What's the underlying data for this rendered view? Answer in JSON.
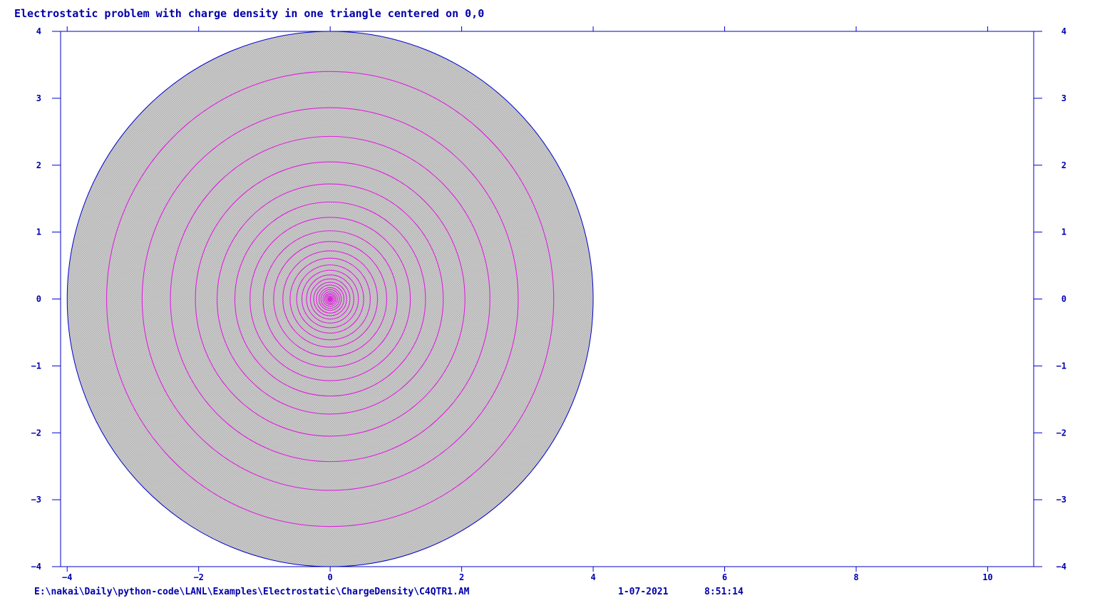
{
  "chart_data": {
    "type": "contour",
    "title": "Electrostatic problem with charge density in one triangle centered on 0,0",
    "xlim": [
      -4.1,
      10.7
    ],
    "ylim": [
      -4,
      4
    ],
    "x_ticks": [
      -4,
      -2,
      0,
      2,
      4,
      6,
      8,
      10
    ],
    "x_tick_labels": [
      "−4",
      "−2",
      "0",
      "2",
      "4",
      "6",
      "8",
      "10"
    ],
    "y_ticks": [
      4,
      3,
      2,
      1,
      0,
      -1,
      -2,
      -3,
      -4
    ],
    "y_tick_labels": [
      "4",
      "3",
      "2",
      "1",
      "0",
      "−1",
      "−2",
      "−3",
      "−4"
    ],
    "mesh_region": {
      "shape": "disk",
      "center": [
        0,
        0
      ],
      "radius": 4.0,
      "fill_color": "#c8c8c8",
      "mesh_line_color": "#a8a8a8"
    },
    "contours": {
      "center": [
        0,
        0
      ],
      "color": "#e020e0",
      "radii": [
        3.4,
        2.86,
        2.43,
        2.05,
        1.72,
        1.45,
        1.22,
        1.02,
        0.86,
        0.72,
        0.61,
        0.51,
        0.43,
        0.36,
        0.3,
        0.25,
        0.21,
        0.17,
        0.14,
        0.11,
        0.085,
        0.065,
        0.045,
        0.03
      ]
    },
    "axis_color": "#0000cc",
    "grid": false
  },
  "footer": {
    "path": "E:\\nakai\\Daily\\python-code\\LANL\\Examples\\Electrostatic\\ChargeDensity\\C4QTR1.AM",
    "date": "1-07-2021",
    "time": "8:51:14"
  }
}
